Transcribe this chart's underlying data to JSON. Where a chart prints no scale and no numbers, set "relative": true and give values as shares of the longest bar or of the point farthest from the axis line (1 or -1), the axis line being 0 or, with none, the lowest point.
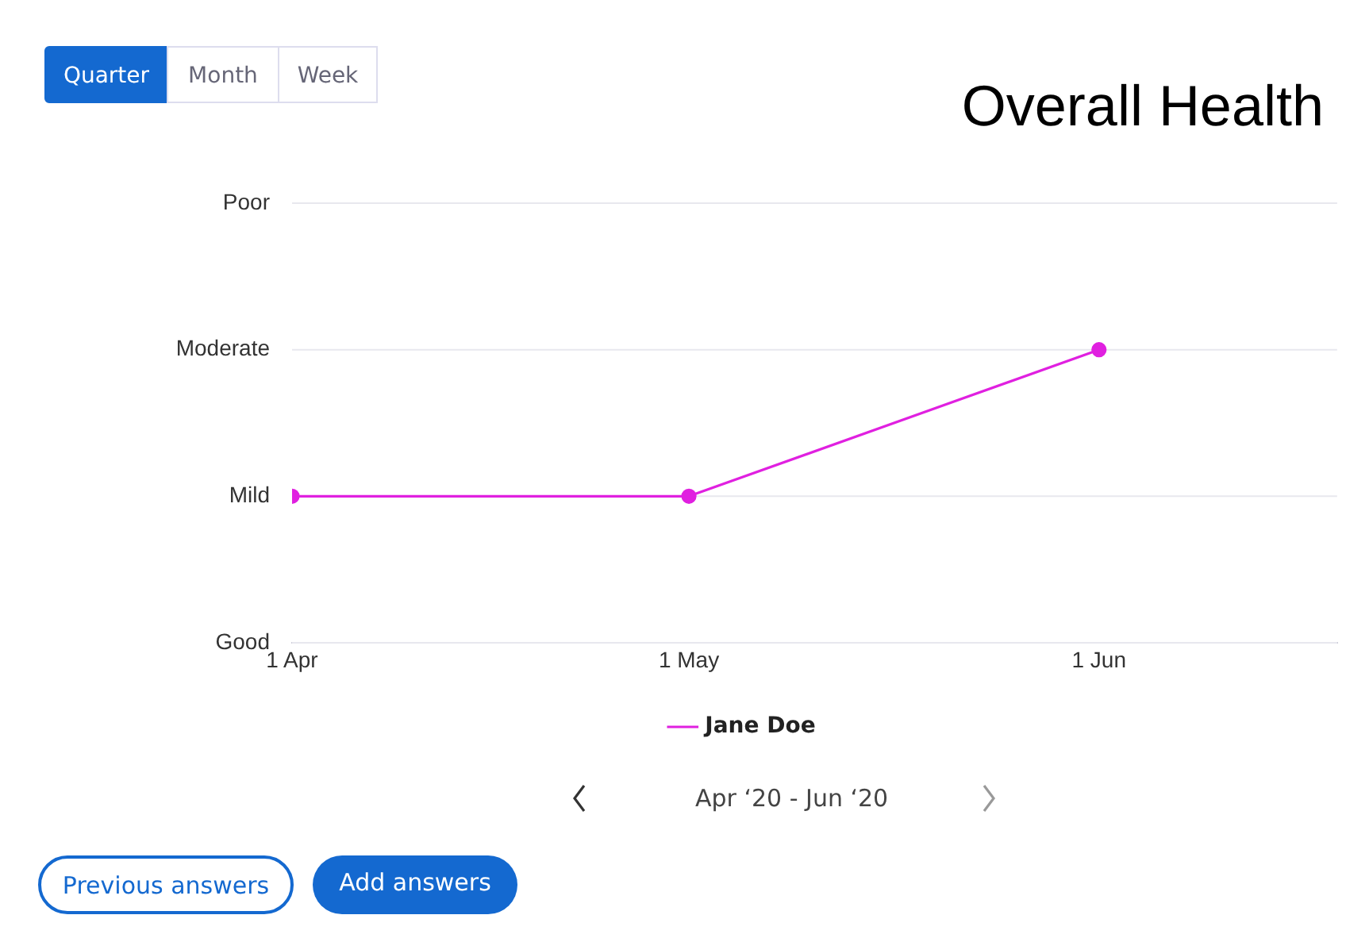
{
  "chart_data": {
    "type": "line",
    "title": "Overall Health",
    "x": [
      "--04-01",
      "--05-01",
      "--06-01"
    ],
    "series": [
      {
        "name": "Jane Doe",
        "color": "#e020e0",
        "values": [
          0.5,
          0.5,
          1
        ]
      }
    ],
    "relative": true,
    "xlim": [
      "--04-01",
      "--06-19"
    ],
    "xticks": [
      {
        "value": "--04-01",
        "label": "1 Apr"
      },
      {
        "value": "--05-01",
        "label": "1 May"
      },
      {
        "value": "--06-01",
        "label": "1 Jun"
      }
    ],
    "ref_lines": [
      {
        "axis": "y",
        "value": 0,
        "label": "Good"
      },
      {
        "axis": "y",
        "value": 0.5,
        "label": "Mild"
      },
      {
        "axis": "y",
        "value": 1,
        "label": "Moderate"
      },
      {
        "axis": "y",
        "value": 1.5,
        "label": "Poor",
        "color": "#e8e8ee"
      }
    ],
    "legend": "bottom",
    "marker": "circle",
    "line_style": "solid",
    "annotations": [
      "Quarter",
      "Month",
      "Week",
      "Apr ‘20 - Jun ‘20",
      "Previous answers",
      "Add answers"
    ]
  }
}
